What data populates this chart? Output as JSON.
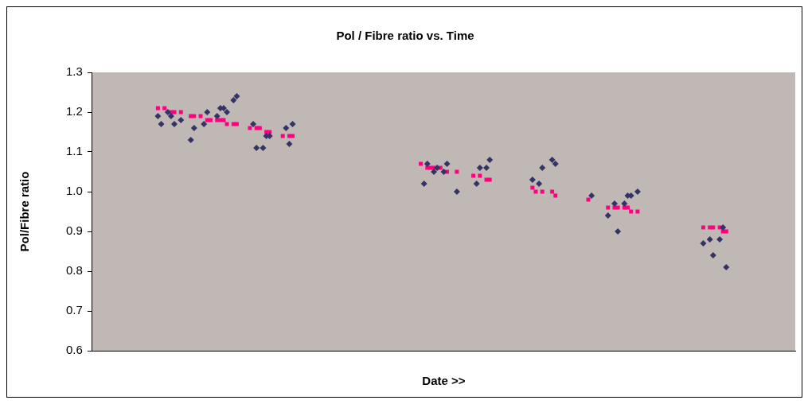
{
  "chart_data": {
    "type": "scatter",
    "title": "Pol / Fibre ratio vs. Time",
    "xlabel": "Date >>",
    "ylabel": "Pol/Fibre ratio",
    "categories": [
      null,
      null,
      null,
      null,
      null,
      null,
      null,
      null,
      null,
      null,
      null,
      null,
      null,
      null,
      null,
      null,
      null,
      null,
      null,
      null,
      null,
      null,
      null,
      null,
      null,
      null,
      null,
      null,
      null,
      null,
      null,
      null,
      null,
      null,
      null,
      null,
      null,
      null,
      null,
      null,
      null,
      null,
      null,
      null,
      null,
      null,
      null,
      null,
      null,
      null,
      null,
      null,
      null,
      null,
      null,
      null,
      null,
      null,
      null,
      null,
      null,
      null,
      null,
      null,
      null,
      null,
      null,
      null,
      null,
      null,
      null,
      null,
      null,
      null,
      null,
      null,
      null,
      null,
      null,
      null,
      null,
      null,
      null,
      null,
      null,
      null,
      null,
      null,
      null,
      null,
      null,
      null,
      null,
      null,
      null,
      null,
      null,
      null,
      null,
      null,
      null,
      null,
      null,
      null,
      null,
      null,
      null,
      null,
      null,
      null,
      null,
      null,
      null,
      null,
      null,
      null,
      null,
      null,
      null,
      null,
      null,
      null,
      null,
      null,
      null,
      null,
      null,
      null,
      null,
      null,
      null,
      null,
      null,
      null,
      null,
      null,
      null,
      null,
      null,
      null,
      null,
      null,
      null,
      null,
      null,
      null,
      null,
      null,
      null,
      null,
      null,
      null,
      null,
      null,
      null,
      null,
      null,
      null,
      null,
      null,
      null,
      null,
      null,
      null,
      null,
      null,
      null,
      null,
      null,
      null,
      null,
      null,
      null,
      null,
      null,
      null,
      null,
      null,
      null,
      null,
      null,
      null,
      null,
      null,
      null,
      null,
      null,
      null,
      null,
      null,
      null,
      null,
      null,
      null,
      null,
      null,
      null,
      null,
      null,
      null,
      null,
      null,
      null,
      null,
      null,
      null,
      null,
      null,
      null,
      null,
      null,
      null,
      null,
      null,
      null
    ],
    "series": [
      {
        "color": "#333366",
        "marker": "diamond",
        "values": [
          null,
          null,
          null,
          null,
          null,
          null,
          null,
          null,
          null,
          null,
          null,
          null,
          null,
          null,
          null,
          null,
          null,
          null,
          null,
          null,
          1.19,
          1.17,
          null,
          1.2,
          1.19,
          1.17,
          null,
          1.18,
          null,
          null,
          1.13,
          1.16,
          null,
          null,
          1.17,
          1.2,
          null,
          null,
          1.19,
          1.21,
          1.21,
          1.2,
          null,
          1.23,
          1.24,
          null,
          null,
          null,
          null,
          1.17,
          1.11,
          null,
          1.11,
          1.14,
          1.14,
          null,
          null,
          null,
          null,
          1.16,
          1.12,
          1.17,
          null,
          null,
          null,
          null,
          null,
          null,
          null,
          null,
          null,
          null,
          null,
          null,
          null,
          null,
          null,
          null,
          null,
          null,
          null,
          null,
          null,
          null,
          null,
          null,
          null,
          null,
          null,
          null,
          null,
          null,
          null,
          null,
          null,
          null,
          null,
          null,
          null,
          null,
          null,
          1.02,
          1.07,
          null,
          1.05,
          1.06,
          null,
          1.05,
          1.07,
          null,
          null,
          1.0,
          null,
          null,
          null,
          null,
          null,
          1.02,
          1.06,
          null,
          1.06,
          1.08,
          null,
          null,
          null,
          null,
          null,
          null,
          null,
          null,
          null,
          null,
          null,
          null,
          1.03,
          null,
          1.02,
          1.06,
          null,
          null,
          1.08,
          1.07,
          null,
          null,
          null,
          null,
          null,
          null,
          null,
          null,
          null,
          null,
          0.99,
          null,
          null,
          null,
          null,
          0.94,
          null,
          0.97,
          0.9,
          null,
          0.97,
          0.99,
          0.99,
          null,
          1.0,
          null,
          null,
          null,
          null,
          null,
          null,
          null,
          null,
          null,
          null,
          null,
          null,
          null,
          null,
          null,
          null,
          null,
          null,
          null,
          0.87,
          null,
          0.88,
          0.84,
          null,
          0.88,
          0.91,
          0.81,
          null,
          null,
          null,
          null,
          null,
          null,
          null,
          null,
          null,
          null,
          null,
          null,
          null,
          null,
          null,
          null,
          null,
          null,
          null,
          null,
          null
        ]
      },
      {
        "color": "#ff0080",
        "marker": "square",
        "values": [
          null,
          null,
          null,
          null,
          null,
          null,
          null,
          null,
          null,
          null,
          null,
          null,
          null,
          null,
          null,
          null,
          null,
          null,
          null,
          null,
          1.21,
          null,
          1.21,
          null,
          1.2,
          1.2,
          null,
          1.2,
          null,
          null,
          1.19,
          1.19,
          null,
          1.19,
          null,
          1.18,
          1.18,
          null,
          1.18,
          1.18,
          1.18,
          1.17,
          null,
          1.17,
          1.17,
          null,
          null,
          null,
          1.16,
          null,
          1.16,
          1.16,
          null,
          1.15,
          1.15,
          null,
          null,
          null,
          1.14,
          null,
          1.14,
          1.14,
          null,
          null,
          null,
          null,
          null,
          null,
          null,
          null,
          null,
          null,
          null,
          null,
          null,
          null,
          null,
          null,
          null,
          null,
          null,
          null,
          null,
          null,
          null,
          null,
          null,
          null,
          null,
          null,
          null,
          null,
          null,
          null,
          null,
          null,
          null,
          null,
          null,
          null,
          1.07,
          null,
          1.06,
          1.06,
          1.06,
          null,
          1.06,
          null,
          1.05,
          null,
          null,
          1.05,
          null,
          null,
          null,
          null,
          1.04,
          null,
          1.04,
          null,
          1.03,
          1.03,
          null,
          null,
          null,
          null,
          null,
          null,
          null,
          null,
          null,
          null,
          null,
          null,
          1.01,
          1.0,
          null,
          1.0,
          null,
          null,
          1.0,
          0.99,
          null,
          null,
          null,
          null,
          null,
          null,
          null,
          null,
          null,
          0.98,
          null,
          null,
          null,
          null,
          null,
          0.96,
          null,
          0.96,
          0.96,
          null,
          0.96,
          0.96,
          0.95,
          null,
          0.95,
          null,
          null,
          null,
          null,
          null,
          null,
          null,
          null,
          null,
          null,
          null,
          null,
          null,
          null,
          null,
          null,
          null,
          null,
          null,
          0.91,
          null,
          0.91,
          0.91,
          null,
          0.91,
          0.9,
          0.9,
          null,
          null,
          null,
          null,
          null,
          null,
          null,
          null,
          null,
          null,
          null,
          null,
          null,
          null,
          null,
          null,
          null,
          null,
          null,
          null,
          null
        ]
      }
    ],
    "ylim": [
      0.6,
      1.3
    ],
    "yticks": [
      {
        "value": 0.6,
        "label": "0.6"
      },
      {
        "value": 0.7,
        "label": "0.7"
      },
      {
        "value": 0.8,
        "label": "0.8"
      },
      {
        "value": 0.9,
        "label": "0.9"
      },
      {
        "value": 1.0,
        "label": "1.0"
      },
      {
        "value": 1.1,
        "label": "1.1"
      },
      {
        "value": 1.2,
        "label": "1.2"
      },
      {
        "value": 1.3,
        "label": "1.3"
      }
    ],
    "tick_labels": "y",
    "grid": false,
    "legend": false
  }
}
